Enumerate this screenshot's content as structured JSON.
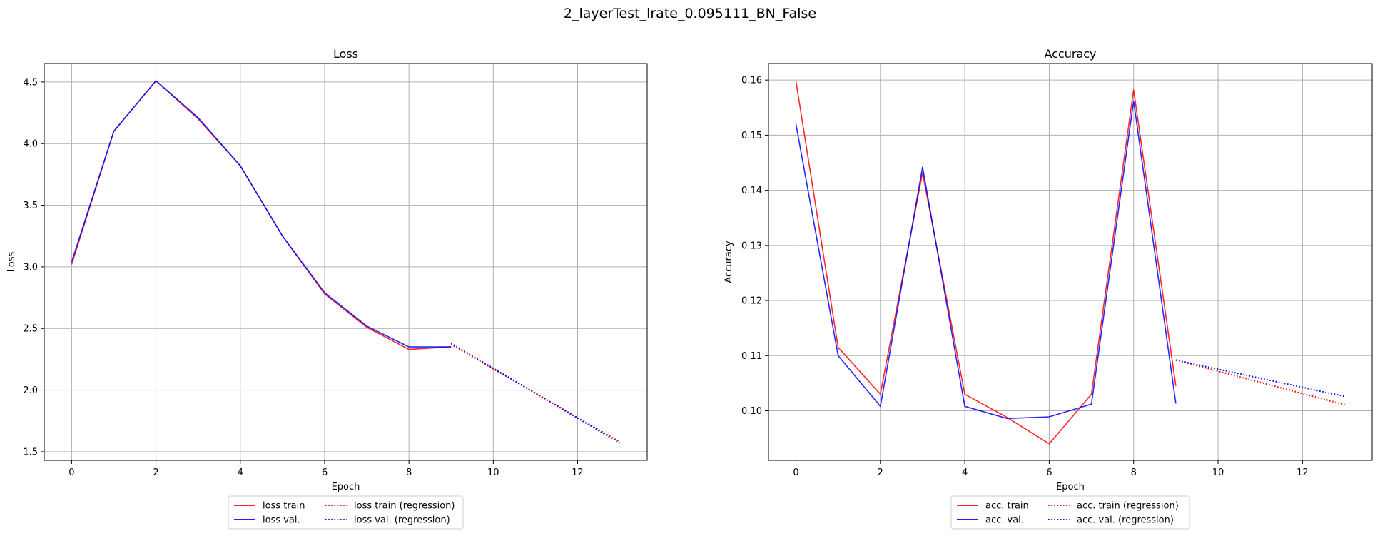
{
  "figure": {
    "suptitle": "2_layerTest_lrate_0.095111_BN_False"
  },
  "colors": {
    "train": "#ff0000",
    "val": "#0000ff",
    "grid": "#b0b0b0"
  },
  "chart_data": [
    {
      "type": "line",
      "title": "Loss",
      "xlabel": "Epoch",
      "ylabel": "Loss",
      "xlim": [
        -0.65,
        13.65
      ],
      "ylim": [
        1.43,
        4.65
      ],
      "xticks": [
        0,
        2,
        4,
        6,
        8,
        10,
        12
      ],
      "yticks": [
        1.5,
        2.0,
        2.5,
        3.0,
        3.5,
        4.0,
        4.5
      ],
      "ytick_labels": [
        "1.5",
        "2.0",
        "2.5",
        "3.0",
        "3.5",
        "4.0",
        "4.5"
      ],
      "grid": true,
      "legend_position": "below",
      "series": [
        {
          "name": "loss train",
          "style": "solid",
          "color": "#ff0000",
          "x": [
            0,
            1,
            2,
            3,
            4,
            5,
            6,
            7,
            8,
            9
          ],
          "y": [
            3.02,
            4.1,
            4.51,
            4.2,
            3.82,
            3.25,
            2.78,
            2.51,
            2.33,
            2.35
          ]
        },
        {
          "name": "loss val.",
          "style": "solid",
          "color": "#0000ff",
          "x": [
            0,
            1,
            2,
            3,
            4,
            5,
            6,
            7,
            8,
            9
          ],
          "y": [
            3.04,
            4.1,
            4.51,
            4.21,
            3.82,
            3.25,
            2.79,
            2.52,
            2.35,
            2.35
          ]
        },
        {
          "name": "loss train (regression)",
          "style": "dotted",
          "color": "#ff0000",
          "x": [
            9,
            13
          ],
          "y": [
            2.37,
            1.58
          ]
        },
        {
          "name": "loss val. (regression)",
          "style": "dotted",
          "color": "#0000ff",
          "x": [
            9,
            13
          ],
          "y": [
            2.38,
            1.57
          ]
        }
      ]
    },
    {
      "type": "line",
      "title": "Accuracy",
      "xlabel": "Epoch",
      "ylabel": "Accuracy",
      "xlim": [
        -0.65,
        13.65
      ],
      "ylim": [
        0.091,
        0.163
      ],
      "xticks": [
        0,
        2,
        4,
        6,
        8,
        10,
        12
      ],
      "yticks": [
        0.1,
        0.11,
        0.12,
        0.13,
        0.14,
        0.15,
        0.16
      ],
      "ytick_labels": [
        "0.10",
        "0.11",
        "0.12",
        "0.13",
        "0.14",
        "0.15",
        "0.16"
      ],
      "grid": true,
      "legend_position": "below",
      "series": [
        {
          "name": "acc. train",
          "style": "solid",
          "color": "#ff0000",
          "x": [
            0,
            1,
            2,
            3,
            4,
            5,
            6,
            7,
            8,
            9
          ],
          "y": [
            0.1598,
            0.1115,
            0.103,
            0.1432,
            0.103,
            0.0988,
            0.094,
            0.103,
            0.1582,
            0.1045
          ]
        },
        {
          "name": "acc. val.",
          "style": "solid",
          "color": "#0000ff",
          "x": [
            0,
            1,
            2,
            3,
            4,
            5,
            6,
            7,
            8,
            9
          ],
          "y": [
            0.152,
            0.11,
            0.1008,
            0.1442,
            0.1008,
            0.0986,
            0.0989,
            0.1012,
            0.1562,
            0.1013
          ]
        },
        {
          "name": "acc. train (regression)",
          "style": "dotted",
          "color": "#ff0000",
          "x": [
            9,
            13
          ],
          "y": [
            0.1092,
            0.1011
          ]
        },
        {
          "name": "acc. val. (regression)",
          "style": "dotted",
          "color": "#0000ff",
          "x": [
            9,
            13
          ],
          "y": [
            0.1092,
            0.1026
          ]
        }
      ]
    }
  ]
}
